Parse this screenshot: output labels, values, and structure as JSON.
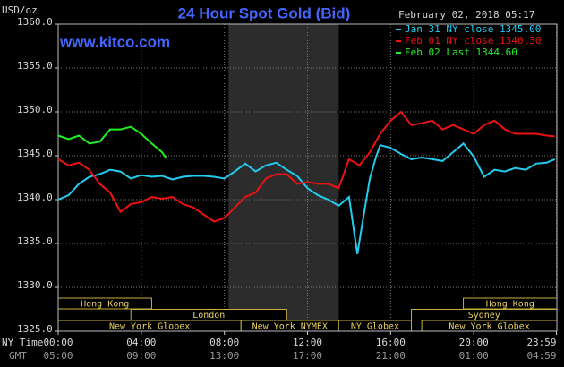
{
  "chart_data": {
    "type": "line",
    "title": "24 Hour Spot Gold (Bid)",
    "subtitle": "www.kitco.com",
    "timestamp": "February 02, 2018 05:17",
    "ylabel": "USD/oz",
    "xlabel": "NY Time",
    "x2label": "GMT",
    "ylim": [
      1325,
      1360
    ],
    "yticks": [
      {
        "value": 1325,
        "label": "1325.0"
      },
      {
        "value": 1330,
        "label": "1330.0"
      },
      {
        "value": 1335,
        "label": "1335.0"
      },
      {
        "value": 1340,
        "label": "1340.0"
      },
      {
        "value": 1345,
        "label": "1345.0"
      },
      {
        "value": 1350,
        "label": "1350.0"
      },
      {
        "value": 1355,
        "label": "1355.0"
      },
      {
        "value": 1360,
        "label": "1360.0"
      }
    ],
    "xlim": [
      0,
      24
    ],
    "xticks": [
      {
        "value": 0,
        "label": "00:00"
      },
      {
        "value": 4,
        "label": "04:00"
      },
      {
        "value": 8,
        "label": "08:00"
      },
      {
        "value": 12,
        "label": "12:00"
      },
      {
        "value": 16,
        "label": "16:00"
      },
      {
        "value": 20,
        "label": "20:00"
      },
      {
        "value": 23.98,
        "label": "23:59"
      }
    ],
    "x2ticks": [
      {
        "value": 0,
        "label": "05:00"
      },
      {
        "value": 4,
        "label": "09:00"
      },
      {
        "value": 8,
        "label": "13:00"
      },
      {
        "value": 12,
        "label": "17:00"
      },
      {
        "value": 16,
        "label": "21:00"
      },
      {
        "value": 20,
        "label": "01:00"
      },
      {
        "value": 23.98,
        "label": "04:59"
      }
    ],
    "grid": true,
    "highlight_range": [
      8.2,
      13.5
    ],
    "sessions": [
      {
        "name": "Hong Kong",
        "row": 0,
        "start": 0,
        "end": 4.5
      },
      {
        "name": "Hong Kong",
        "row": 0,
        "start": 19.5,
        "end": 24
      },
      {
        "name": "London",
        "row": 1,
        "start": 3.5,
        "end": 11
      },
      {
        "name": "Sydney",
        "row": 1,
        "start": 17,
        "end": 24
      },
      {
        "name": "New York Globex",
        "row": 2,
        "start": 0,
        "end": 8.8
      },
      {
        "name": "New York NYMEX",
        "row": 2,
        "start": 8.8,
        "end": 13.5
      },
      {
        "name": "NY Globex",
        "row": 2,
        "start": 13.5,
        "end": 17
      },
      {
        "name": "New York Globex",
        "row": 2,
        "start": 17.5,
        "end": 24
      }
    ],
    "series": [
      {
        "name": "Jan 31 NY close 1345.00",
        "color": "#22ccee",
        "x": [
          0,
          0.5,
          1,
          1.5,
          2,
          2.5,
          3,
          3.5,
          4,
          4.5,
          5,
          5.5,
          6,
          6.5,
          7,
          7.5,
          8,
          8.5,
          9,
          9.5,
          10,
          10.5,
          11,
          11.5,
          12,
          12.5,
          13,
          13.5,
          14,
          14.25,
          14.4,
          14.6,
          15,
          15.3,
          15.5,
          16,
          16.5,
          17,
          17.5,
          18,
          18.5,
          19,
          19.5,
          20,
          20.5,
          21,
          21.5,
          22,
          22.5,
          23,
          23.5,
          23.9
        ],
        "values": [
          1340.0,
          1340.5,
          1341.8,
          1342.6,
          1342.9,
          1343.4,
          1343.2,
          1342.4,
          1342.8,
          1342.6,
          1342.7,
          1342.3,
          1342.6,
          1342.7,
          1342.7,
          1342.6,
          1342.4,
          1343.2,
          1344.1,
          1343.2,
          1343.9,
          1344.2,
          1343.4,
          1342.7,
          1341.3,
          1340.5,
          1340.0,
          1339.3,
          1340.3,
          1336.2,
          1333.8,
          1336.7,
          1342.4,
          1344.9,
          1346.2,
          1345.9,
          1345.2,
          1344.6,
          1344.8,
          1344.6,
          1344.4,
          1345.4,
          1346.4,
          1344.9,
          1342.6,
          1343.4,
          1343.2,
          1343.6,
          1343.4,
          1344.1,
          1344.2,
          1344.6
        ]
      },
      {
        "name": "Feb 01 NY close 1340.30",
        "color": "#ee1111",
        "x": [
          0,
          0.5,
          1,
          1.5,
          2,
          2.5,
          3,
          3.5,
          4,
          4.5,
          5,
          5.5,
          6,
          6.5,
          7,
          7.5,
          8,
          8.5,
          9,
          9.5,
          10,
          10.5,
          11,
          11.5,
          12,
          12.5,
          13,
          13.5,
          14,
          14.5,
          15,
          15.5,
          16,
          16.5,
          17,
          17.5,
          18,
          18.5,
          19,
          19.5,
          20,
          20.5,
          21,
          21.5,
          22,
          22.5,
          23,
          23.5,
          23.9
        ],
        "values": [
          1344.6,
          1343.9,
          1344.2,
          1343.4,
          1341.8,
          1340.8,
          1338.6,
          1339.5,
          1339.7,
          1340.3,
          1340.1,
          1340.3,
          1339.5,
          1339.1,
          1338.3,
          1337.5,
          1337.9,
          1339.1,
          1340.3,
          1340.8,
          1342.4,
          1342.9,
          1342.9,
          1341.8,
          1342.0,
          1341.8,
          1341.8,
          1341.3,
          1344.6,
          1343.9,
          1345.4,
          1347.5,
          1349.0,
          1350.0,
          1348.5,
          1348.7,
          1349.0,
          1348.0,
          1348.5,
          1348.0,
          1347.5,
          1348.5,
          1349.0,
          1348.0,
          1347.5,
          1347.5,
          1347.5,
          1347.3,
          1347.2
        ]
      },
      {
        "name": "Feb 02 Last 1344.60",
        "color": "#22ee22",
        "x": [
          0,
          0.5,
          1,
          1.5,
          2,
          2.5,
          3,
          3.5,
          4,
          4.5,
          5,
          5.2
        ],
        "values": [
          1347.3,
          1346.9,
          1347.3,
          1346.4,
          1346.6,
          1348.0,
          1348.0,
          1348.3,
          1347.5,
          1346.4,
          1345.4,
          1344.7
        ]
      }
    ]
  }
}
